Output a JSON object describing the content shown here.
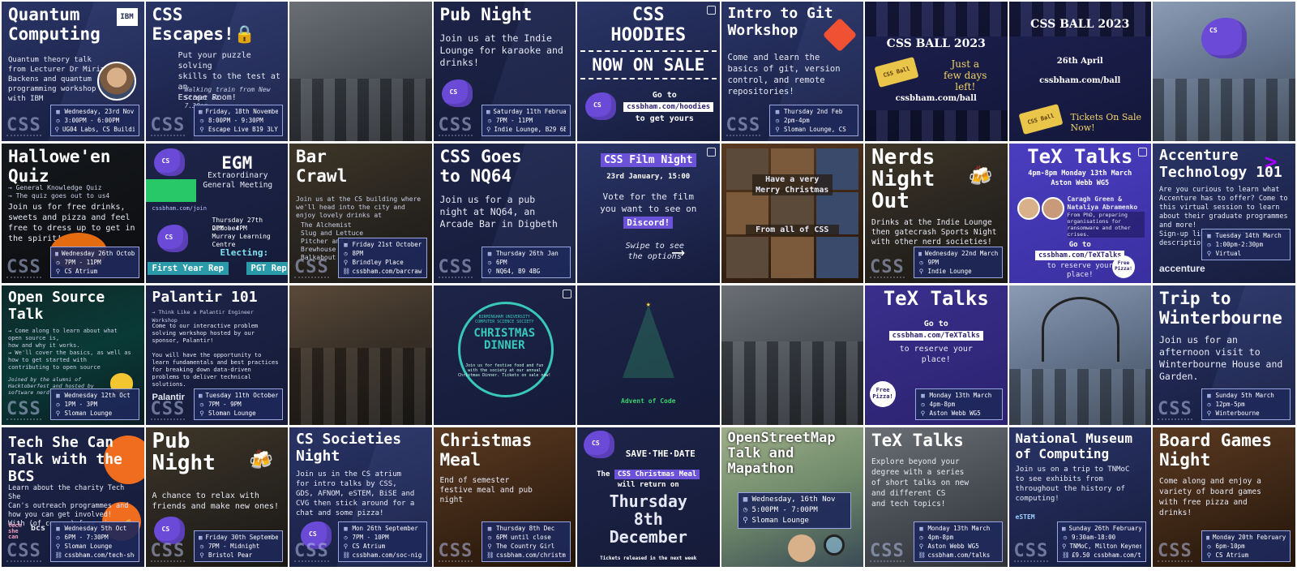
{
  "tiles": {
    "quantum": {
      "title": "Quantum\nComputing",
      "badge": "IBM",
      "desc": "Quantum theory talk\nfrom Lecturer Dr Miriam\nBackens and quantum\nprogramming workshop\nwith IBM",
      "date": "Wednesday, 23rd Nov",
      "time": "3:00PM - 6:00PM",
      "place": "UG04 Labs, CS Building",
      "logo": "CSS"
    },
    "escapes": {
      "title": "CSS\nEscapes!🔒",
      "desc": "Put your puzzle solving\nskills to the test at an\nEscape Room!",
      "note": "Walking train from New Street at\n7.30pm",
      "date": "Friday, 18th November",
      "time": "8:00PM - 9:30PM",
      "place": "Escape Live B19 3LY",
      "logo": "CSS"
    },
    "pub1": {
      "title": "Pub Night",
      "desc": "Join us at the Indie\nLounge for karaoke and\ndrinks!",
      "date": "Saturday 11th February",
      "time": "7PM - 11PM",
      "place": "Indie Lounge, B29 6BQ",
      "logo": "CSS"
    },
    "hoodies": {
      "title": "CSS\nHOODIES",
      "banner": "NOW ON SALE",
      "line1": "Go to",
      "link": "cssbham.com/hoodies",
      "line2": "to get yours"
    },
    "git": {
      "title": "Intro to Git\nWorkshop",
      "desc": "Come and learn the\nbasics of git, version\ncontrol, and remote\nrepositories!",
      "date": "Thursday 2nd Feb",
      "time": "2pm-4pm",
      "place": "Sloman Lounge, CS",
      "logo": "CSS"
    },
    "ball1": {
      "title": "CSS BALL 2023",
      "side": "Just a\nfew days\nleft!",
      "url": "cssbham.com/ball",
      "ticket": "CSS Ball"
    },
    "ball2": {
      "title": "CSS BALL 2023",
      "date": "26th April",
      "url": "cssbham.com/ball",
      "sale": "Tickets On Sale\nNow!",
      "ticket": "CSS Ball"
    },
    "halloween": {
      "title": "Hallowe'en\nQuiz",
      "sub": "→ General Knowledge Quiz\n→ The quiz goes out to us4",
      "desc": "Join us for free drinks,\nsweets and pizza and feel\nfree to dress up to get in\nthe spirit!",
      "date": "Wednesday 26th October",
      "time": "7PM - 11PM",
      "place": "CS Atrium",
      "logo": "CSS"
    },
    "egm": {
      "title": "EGM",
      "sub": "Extraordinary\nGeneral Meeting",
      "link": "cssbham.com/join",
      "date": "Thursday 27th October",
      "time": "2PM - 4PM",
      "place": "Murray Learning Centre",
      "electing": "Electing:",
      "role1": "First Year Rep",
      "role2": "PGT Rep"
    },
    "barcrawl": {
      "title": "Bar\nCrawl",
      "desc": "Join us at the CS building where\nwe'll head into the city and\nenjoy lovely drinks at",
      "venues": "The Alchemist\nSlug and Lettuce\nPitcher and Piano\nBrewhouse\nBalkabout",
      "date": "Friday 21st October",
      "time": "8PM",
      "place": "Brindley Place",
      "link": "cssbham.com/barcrawl",
      "logo": "CSS"
    },
    "nq64": {
      "title": "CSS Goes\nto NQ64",
      "desc": "Join us for a pub\nnight at NQ64, an\nArcade Bar in Digbeth",
      "date": "Thursday 26th Jan",
      "time": "6PM",
      "place": "NQ64, B9 4BG",
      "logo": "CSS"
    },
    "film": {
      "title": "CSS Film Night",
      "date": "23rd January, 15:00",
      "vote": "Vote for the film\nyou want to see on",
      "discord": "Discord!",
      "swipe": "Swipe to see\nthe options"
    },
    "xmas_collage": {
      "greeting": "Have a very\nMerry Christmas",
      "from": "From all of CSS"
    },
    "nerds": {
      "title": "Nerds\nNight\nOut",
      "desc": "Drinks at the Indie Lounge\nthen gatecrash Sports Night\nwith other nerd societies!",
      "date": "Wednesday 22nd March",
      "time": "9PM",
      "place": "Indie Lounge",
      "logo": "CSS"
    },
    "tex1": {
      "title": "TeX Talks",
      "time": "4pm-8pm Monday 13th March",
      "place": "Aston Webb WG5",
      "speakers": "Caragh Green &\nNataliya Abramenko",
      "topic": "From PhD, preparing\norganisations for\nransomware and other\ncrises.",
      "goto": "Go to",
      "link": "cssbham.com/TeXTalks",
      "reserve": "to reserve your\nplace!",
      "pizza": "Free\nPizza!"
    },
    "accenture": {
      "title": "Accenture\nTechnology 101",
      "desc": "Are you curious to learn what\nAccenture has to offer? Come to\nthis virtual session to learn\nabout their graduate programmes\nand more!\nSign-up link is in the\ndescription",
      "brand": "accenture",
      "date": "Tuesday 14th March",
      "time": "1:00pm-2:30pm",
      "place": "Virtual"
    },
    "opensource": {
      "title": "Open Source\nTalk",
      "desc": "→ Come along to learn about what\n   open source is,\n   how and why it works.\n→ We'll cover the basics, as well as\n   how to get started with\n   contributing to open source",
      "note": "Joined by the alumni of\nHacktoberfest and hosted by\nsoftware nerd Justin Cheawel",
      "date": "Wednesday 12th Oct",
      "time": "1PM - 3PM",
      "place": "Sloman Lounge",
      "logo": "CSS"
    },
    "palantir": {
      "title": "Palantir 101",
      "sub": "→ Think Like a Palantir Engineer Workshop",
      "desc": "Come to our interactive problem\nsolving workshop hosted by our\nsponsor, Palantir!\n\nYou will have the opportunity to\nlearn fundamentals and best practices\nfor breaking down data-driven\nproblems to deliver technical\nsolutions.",
      "brand": "Palantir",
      "date": "Tuesday 11th October",
      "time": "7PM - 9PM",
      "place": "Sloman Lounge",
      "logo": "CSS"
    },
    "xmasdinner": {
      "org": "BIRMINGHAM UNIVERSITY\nCOMPUTER SCIENCE SOCIETY",
      "title": "CHRISTMAS\nDINNER",
      "desc": "Join us for festive food and fun\nwith the society at our annual\nChristmas Dinner. Tickets on sale now!"
    },
    "aoc": {
      "label": "Advent of Code"
    },
    "tex2": {
      "title": "TeX Talks",
      "goto": "Go to",
      "link": "cssbham.com/TeXTalks",
      "reserve": "to reserve your\nplace!",
      "pizza": "Free\nPizza!",
      "date": "Monday 13th March",
      "time": "4pm-8pm",
      "place": "Aston Webb WG5"
    },
    "winterbourne": {
      "title": "Trip to\nWinterbourne",
      "desc": "Join us for an\nafternoon visit to\nWinterbourne House and\nGarden.",
      "date": "Sunday 5th March",
      "time": "12pm-5pm",
      "place": "Winterbourne",
      "logo": "CSS"
    },
    "techshecan": {
      "title": "Tech She Can\nTalk with the\nBCS",
      "desc": "Learn about the charity Tech She\nCan's outreach programmes and\nhow you can get involved!\nWith (of course) free pizza 🍕",
      "brand1": "tech\nshe\ncan",
      "brand2": "bcs",
      "date": "Wednesday 5th Oct",
      "time": "6PM - 7:30PM",
      "place": "Sloman Lounge",
      "link": "cssbham.com/tech-she-can",
      "logo": "CSS"
    },
    "pub2": {
      "title": "Pub\nNight",
      "desc": "A chance to relax with\nfriends and make new ones!",
      "date": "Friday 30th September",
      "time": "7PM - Midnight",
      "place": "Bristol Pear",
      "logo": "CSS"
    },
    "societies": {
      "title": "CS Societies\nNight",
      "desc": "Join us in the CS atrium\nfor intro talks by CSS,\nGDS, AFNOM, eSTEM, BiSE and\nCVG then stick around for a\nchat and some pizza!",
      "date": "Mon 26th September",
      "time": "7PM - 10PM",
      "place": "CS Atrium",
      "link": "cssbham.com/soc-night",
      "logo": "CSS"
    },
    "xmasmeal": {
      "title": "Christmas\nMeal",
      "desc": "End of semester\nfestive meal and pub\nnight",
      "date": "Thursday 8th Dec",
      "time": "6PM until close",
      "place": "The Country Girl",
      "link": "cssbham.com/christmas",
      "logo": "CSS"
    },
    "savedate": {
      "title": "SAVE·THE·DATE",
      "the": "The",
      "event": "CSS Christmas Meal",
      "will": "will return on",
      "big": "Thursday\n8th\nDecember",
      "foot": "Tickets released in the next week"
    },
    "osm": {
      "title": "OpenStreetMap\nTalk and\nMapathon",
      "date": "Wednesday, 16th Nov",
      "time": "5:00PM - 7:00PM",
      "place": "Sloman Lounge"
    },
    "tex3": {
      "title": "TeX Talks",
      "desc": "Explore beyond your\ndegree with a series\nof short talks on new\nand different CS\nand tech topics!",
      "date": "Monday 13th March",
      "time": "4pm-8pm",
      "place": "Aston Webb WG5",
      "link": "cssbham.com/talks",
      "logo": "CSS"
    },
    "tnmoc": {
      "title": "National Museum\nof Computing",
      "desc": "Join us on a trip to TNMoC\nto see exhibits from\nthroughout the history of\ncomputing!",
      "brand": "eSTEM",
      "date": "Sunday 26th February",
      "time": "9:30am-18:00",
      "place": "TNMoC, Milton Keynes",
      "link": "£9.50 cssbham.com/tnmoc",
      "logo": "CSS"
    },
    "boardgames": {
      "title": "Board Games\nNight",
      "desc": "Come along and enjoy a\nvariety of board games\nwith free pizza and\ndrinks!",
      "date": "Monday 20th February",
      "time": "6pm-10pm",
      "place": "CS Atrium",
      "logo": "CSS"
    }
  }
}
